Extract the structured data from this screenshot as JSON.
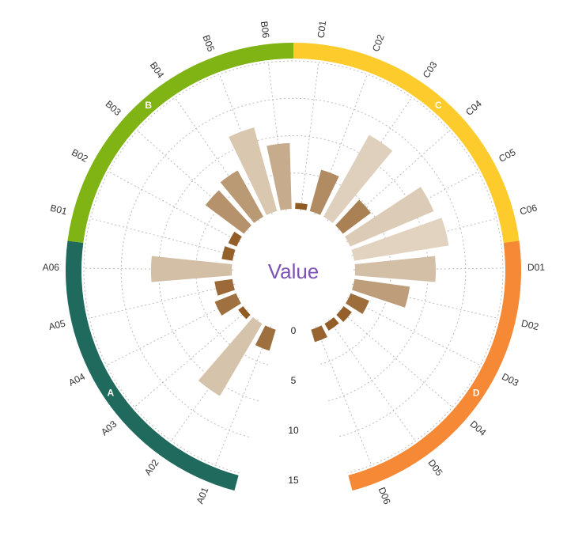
{
  "chart_data": {
    "type": "radial-bar",
    "title": "Value",
    "rlim": [
      0,
      15
    ],
    "radial_ticks": [
      "0",
      "5",
      "10",
      "15"
    ],
    "grid": true,
    "categories": [
      "A01",
      "A02",
      "A03",
      "A04",
      "A05",
      "A06",
      "B01",
      "B02",
      "B03",
      "B04",
      "B05",
      "B06",
      "C01",
      "C02",
      "C03",
      "C04",
      "C05",
      "C06",
      "D01",
      "D02",
      "D03",
      "D04",
      "D05",
      "D06"
    ],
    "values": [
      2.2,
      8.4,
      0.6,
      2.3,
      1.8,
      8.1,
      1.1,
      0.9,
      4.8,
      5.3,
      8.7,
      6.6,
      0.6,
      4.3,
      9.4,
      3.5,
      9.1,
      9.6,
      8.1,
      5.6,
      2.0,
      1.0,
      0.8,
      1.3
    ],
    "groups": [
      {
        "name": "A",
        "color": "#1f6a5c"
      },
      {
        "name": "B",
        "color": "#80b314"
      },
      {
        "name": "C",
        "color": "#fecb2d"
      },
      {
        "name": "D",
        "color": "#f58936"
      }
    ],
    "bar_color_scale": [
      "#f4f0e6",
      "#8b5218"
    ]
  }
}
